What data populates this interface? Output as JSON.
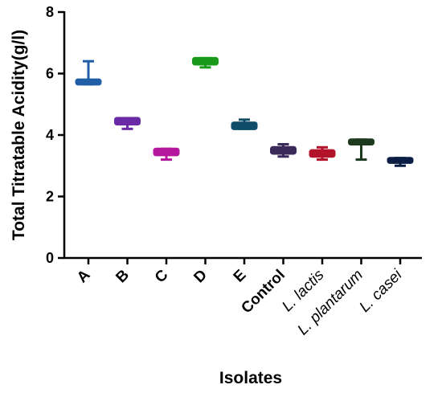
{
  "chart_data": {
    "type": "box",
    "title": "",
    "xlabel": "Isolates",
    "ylabel": "Total Titratable Acidity(g/l)",
    "ylim": [
      0,
      8
    ],
    "yticks": [
      "0",
      "2",
      "4",
      "6",
      "8"
    ],
    "grid": false,
    "categories": [
      "A",
      "B",
      "C",
      "D",
      "E",
      "Control",
      "L. lactis",
      "L. plantarum",
      "L. casei"
    ],
    "category_styles": [
      "bold",
      "bold",
      "bold",
      "bold",
      "bold",
      "bold",
      "italic",
      "italic",
      "italic"
    ],
    "series": [
      {
        "values": [
          {
            "min": 5.65,
            "q1": 5.65,
            "median": 5.75,
            "q3": 5.8,
            "max": 6.4,
            "color": "#1f5fa6"
          },
          {
            "min": 4.2,
            "q1": 4.35,
            "median": 4.45,
            "q3": 4.55,
            "max": 4.55,
            "color": "#6a2aa5"
          },
          {
            "min": 3.2,
            "q1": 3.35,
            "median": 3.45,
            "q3": 3.55,
            "max": 3.55,
            "color": "#b5179e"
          },
          {
            "min": 6.2,
            "q1": 6.3,
            "median": 6.4,
            "q3": 6.5,
            "max": 6.5,
            "color": "#1a9a1a"
          },
          {
            "min": 4.2,
            "q1": 4.2,
            "median": 4.3,
            "q3": 4.4,
            "max": 4.5,
            "color": "#0f4d6b"
          },
          {
            "min": 3.3,
            "q1": 3.4,
            "median": 3.5,
            "q3": 3.6,
            "max": 3.7,
            "color": "#3a2a5a"
          },
          {
            "min": 3.2,
            "q1": 3.3,
            "median": 3.4,
            "q3": 3.5,
            "max": 3.6,
            "color": "#b3132b"
          },
          {
            "min": 3.2,
            "q1": 3.7,
            "median": 3.8,
            "q3": 3.85,
            "max": 3.85,
            "color": "#1e3a1e"
          },
          {
            "min": 3.0,
            "q1": 3.1,
            "median": 3.2,
            "q3": 3.25,
            "max": 3.25,
            "color": "#0b1f45"
          }
        ]
      }
    ]
  }
}
